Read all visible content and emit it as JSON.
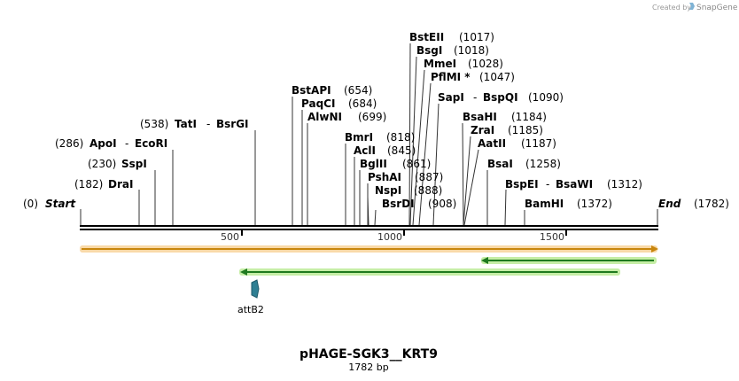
{
  "credit": {
    "prefix": "Created by",
    "brand": "SnapGene"
  },
  "map": {
    "total_bp": 1782,
    "start": {
      "label": "Start",
      "pos": "(0)"
    },
    "end": {
      "label": "End",
      "pos": "(1782)"
    },
    "ticks": [
      "500",
      "1000",
      "1500"
    ],
    "sites": [
      {
        "name": "DraI",
        "pos": "(182)"
      },
      {
        "name": "SspI",
        "pos": "(230)"
      },
      {
        "name": "ApoI",
        "name2": "EcoRI",
        "pos": "(286)"
      },
      {
        "name": "TatI",
        "name2": "BsrGI",
        "pos": "(538)"
      },
      {
        "name": "BstAPI",
        "pos": "(654)"
      },
      {
        "name": "PaqCI",
        "pos": "(684)"
      },
      {
        "name": "AlwNI",
        "pos": "(699)"
      },
      {
        "name": "BmrI",
        "pos": "(818)"
      },
      {
        "name": "AclI",
        "pos": "(845)"
      },
      {
        "name": "BglII",
        "pos": "(861)"
      },
      {
        "name": "PshAI",
        "pos": "(887)"
      },
      {
        "name": "NspI",
        "pos": "(888)"
      },
      {
        "name": "BsrDI",
        "pos": "(908)"
      },
      {
        "name": "BstEII",
        "pos": "(1017)"
      },
      {
        "name": "BsgI",
        "pos": "(1018)"
      },
      {
        "name": "MmeI",
        "pos": "(1028)"
      },
      {
        "name": "PflMI *",
        "pos": "(1047)"
      },
      {
        "name": "SapI",
        "name2": "BspQI",
        "pos": "(1090)"
      },
      {
        "name": "BsaHI",
        "pos": "(1184)"
      },
      {
        "name": "ZraI",
        "pos": "(1185)"
      },
      {
        "name": "AatII",
        "pos": "(1187)"
      },
      {
        "name": "BsaI",
        "pos": "(1258)"
      },
      {
        "name": "BspEI",
        "name2": "BsaWI",
        "pos": "(1312)"
      },
      {
        "name": "BamHI",
        "pos": "(1372)"
      }
    ],
    "features": {
      "orange_bar": {
        "start": 0,
        "end": 1782,
        "color": "#f5a623"
      },
      "green_arrow_1": {
        "start": 1235,
        "end": 1782,
        "color": "#2e8b2e"
      },
      "green_arrow_2": {
        "start": 495,
        "end": 1665,
        "color": "#2e8b2e"
      },
      "attB2": {
        "label": "attB2",
        "pos_bp": 540,
        "color": "#2f7f93"
      }
    }
  },
  "plasmid": {
    "name": "pHAGE-SGK3__KRT9",
    "size": "1782 bp"
  }
}
